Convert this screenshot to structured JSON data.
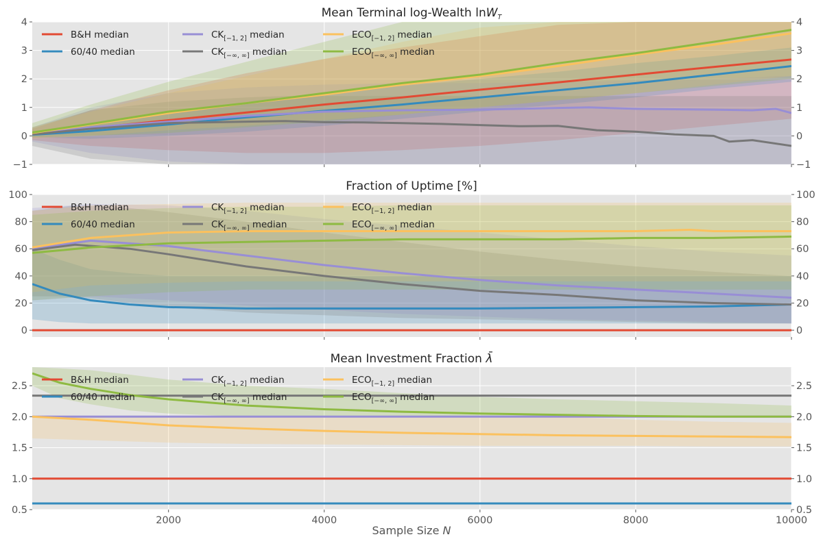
{
  "colors": {
    "bh": "#E24A33",
    "sixty": "#348ABD",
    "ck12": "#988ED5",
    "ckinf": "#777777",
    "eco12": "#FBC15E",
    "ecoinf": "#8EBA42",
    "axes_bg": "#E5E5E5",
    "grid": "#FFFFFF"
  },
  "chart_data": [
    {
      "type": "line",
      "title_text": "Mean Terminal log-Wealth ln",
      "title_var": "W",
      "title_sub": "T",
      "xlim": [
        250,
        10000
      ],
      "ylim": [
        -1,
        4
      ],
      "yticks": [
        -1,
        0,
        1,
        2,
        3,
        4
      ],
      "ytick_labels": [
        "−1",
        "0",
        "1",
        "2",
        "3",
        "4"
      ],
      "xticks": [
        2000,
        4000,
        6000,
        8000,
        10000
      ],
      "grid": true,
      "legend": "upper-left",
      "series": [
        {
          "key": "bh",
          "name": "B&H median",
          "x": [
            250,
            1000,
            2000,
            3000,
            4000,
            5000,
            6000,
            7000,
            8000,
            9000,
            10000
          ],
          "y": [
            0.07,
            0.27,
            0.55,
            0.82,
            1.1,
            1.35,
            1.62,
            1.88,
            2.15,
            2.42,
            2.68
          ],
          "band_low": [
            -0.15,
            -0.35,
            -0.5,
            -0.6,
            -0.6,
            -0.5,
            -0.35,
            -0.15,
            0.1,
            0.35,
            0.6
          ],
          "band_high": [
            0.25,
            0.9,
            1.6,
            2.2,
            2.7,
            3.1,
            3.5,
            3.9,
            4.0,
            4.0,
            4.0
          ]
        },
        {
          "key": "sixty",
          "name": "60/40 median",
          "x": [
            250,
            1000,
            2000,
            3000,
            4000,
            5000,
            6000,
            7000,
            8000,
            9000,
            10000
          ],
          "y": [
            0.04,
            0.17,
            0.4,
            0.65,
            0.88,
            1.1,
            1.35,
            1.6,
            1.85,
            2.15,
            2.45
          ],
          "band_low": [
            -0.05,
            -0.1,
            0.0,
            0.15,
            0.35,
            0.6,
            0.85,
            1.1,
            1.35,
            1.65,
            1.9
          ],
          "band_high": [
            0.12,
            0.45,
            0.8,
            1.15,
            1.45,
            1.75,
            2.0,
            2.25,
            2.55,
            2.8,
            3.1
          ]
        },
        {
          "key": "ck12",
          "name": "CK",
          "name_sub": "[−1, 2]",
          "name_tail": " median",
          "x": [
            250,
            1000,
            2000,
            3000,
            4000,
            5000,
            6000,
            7000,
            7400,
            8000,
            9000,
            9500,
            9800,
            10000
          ],
          "y": [
            0.05,
            0.3,
            0.5,
            0.7,
            0.85,
            0.9,
            0.92,
            0.98,
            1.0,
            0.95,
            0.92,
            0.9,
            0.95,
            0.8
          ],
          "band_low": [
            -0.2,
            -0.6,
            -0.9,
            -1,
            -1,
            -1,
            -1,
            -1,
            -1,
            -1,
            -1,
            -1,
            -1,
            -1
          ],
          "band_high": [
            0.3,
            1.0,
            1.5,
            1.7,
            1.8,
            1.85,
            1.85,
            1.9,
            1.9,
            1.95,
            2.0,
            2.05,
            2.1,
            2.1
          ]
        },
        {
          "key": "ckinf",
          "name": "CK",
          "name_sub": "[−∞, ∞]",
          "name_tail": " median",
          "x": [
            250,
            1000,
            2000,
            3000,
            3500,
            4000,
            4500,
            5000,
            5500,
            6000,
            6500,
            7000,
            7500,
            8000,
            8500,
            9000,
            9200,
            9500,
            10000
          ],
          "y": [
            0.05,
            0.25,
            0.45,
            0.5,
            0.52,
            0.48,
            0.47,
            0.45,
            0.42,
            0.38,
            0.34,
            0.35,
            0.2,
            0.15,
            0.05,
            0.0,
            -0.2,
            -0.15,
            -0.35
          ],
          "band_low": [
            -0.35,
            -0.8,
            -1,
            -1,
            -1,
            -1,
            -1,
            -1,
            -1,
            -1,
            -1,
            -1,
            -1,
            -1,
            -1,
            -1,
            -1,
            -1,
            -1
          ],
          "band_high": [
            0.3,
            0.9,
            1.2,
            1.35,
            1.4,
            1.4,
            1.4,
            1.4,
            1.4,
            1.4,
            1.4,
            1.4,
            1.4,
            1.4,
            1.4,
            1.4,
            1.4,
            1.4,
            1.4
          ]
        },
        {
          "key": "eco12",
          "name": "ECO",
          "name_sub": "[−1, 2]",
          "name_tail": " median",
          "x": [
            250,
            1000,
            2000,
            3000,
            4000,
            5000,
            6000,
            7000,
            8000,
            9000,
            10000
          ],
          "y": [
            0.1,
            0.4,
            0.8,
            1.15,
            1.45,
            1.8,
            2.1,
            2.45,
            2.85,
            3.2,
            3.6
          ],
          "band_low": [
            -0.1,
            0.0,
            0.2,
            0.35,
            0.55,
            0.75,
            1.0,
            1.25,
            1.5,
            1.8,
            2.1
          ],
          "band_high": [
            0.3,
            0.85,
            1.5,
            2.1,
            2.7,
            3.3,
            3.8,
            4.0,
            4.0,
            4.0,
            4.0
          ]
        },
        {
          "key": "ecoinf",
          "name": "ECO",
          "name_sub": "[−∞, ∞]",
          "name_tail": " median",
          "x": [
            250,
            1000,
            2000,
            3000,
            4000,
            5000,
            6000,
            7000,
            8000,
            9000,
            10000
          ],
          "y": [
            0.12,
            0.42,
            0.85,
            1.15,
            1.5,
            1.85,
            2.15,
            2.55,
            2.9,
            3.3,
            3.72
          ],
          "band_low": [
            -0.05,
            0.0,
            0.1,
            0.3,
            0.5,
            0.75,
            1.0,
            1.25,
            1.5,
            1.75,
            2.0
          ],
          "band_high": [
            0.45,
            1.1,
            1.9,
            2.6,
            3.3,
            4.0,
            4.0,
            4.0,
            4.0,
            4.0,
            4.0
          ]
        }
      ]
    },
    {
      "type": "line",
      "title_text": "Fraction of Uptime [%]",
      "xlim": [
        250,
        10000
      ],
      "ylim": [
        -5,
        100
      ],
      "yticks": [
        0,
        20,
        40,
        60,
        80,
        100
      ],
      "ytick_labels": [
        "0",
        "20",
        "40",
        "60",
        "80",
        "100"
      ],
      "xticks": [
        2000,
        4000,
        6000,
        8000,
        10000
      ],
      "grid": true,
      "legend": "upper-left",
      "series": [
        {
          "key": "bh",
          "name": "B&H median",
          "x": [
            250,
            10000
          ],
          "y": [
            0,
            0
          ]
        },
        {
          "key": "sixty",
          "name": "60/40 median",
          "x": [
            250,
            600,
            1000,
            1500,
            2000,
            3000,
            4000,
            5000,
            6000,
            7000,
            8000,
            9000,
            10000
          ],
          "y": [
            34,
            27,
            22,
            19,
            17,
            16,
            16,
            16,
            16,
            16.5,
            17,
            17.5,
            19
          ],
          "band_low": [
            8,
            6,
            5,
            5,
            5,
            5,
            5,
            5,
            5,
            5,
            5,
            5,
            5
          ],
          "band_high": [
            60,
            52,
            45,
            42,
            40,
            40,
            40,
            40,
            40,
            40,
            40,
            40,
            40
          ]
        },
        {
          "key": "ck12",
          "name": "CK",
          "name_sub": "[−1, 2]",
          "name_tail": " median",
          "x": [
            250,
            1000,
            2000,
            3000,
            4000,
            5000,
            6000,
            7000,
            8000,
            9000,
            10000
          ],
          "y": [
            60,
            66,
            62,
            55,
            48,
            42,
            37,
            33,
            30,
            27,
            24
          ],
          "band_low": [
            22,
            25,
            22,
            18,
            15,
            12,
            10,
            8,
            7,
            6,
            5
          ],
          "band_high": [
            90,
            93,
            92,
            88,
            82,
            77,
            72,
            67,
            62,
            58,
            55
          ]
        },
        {
          "key": "ckinf",
          "name": "CK",
          "name_sub": "[−∞, ∞]",
          "name_tail": " median",
          "x": [
            250,
            800,
            1500,
            2000,
            3000,
            4000,
            5000,
            6000,
            7000,
            8000,
            9000,
            10000
          ],
          "y": [
            59,
            63,
            60,
            56,
            47,
            40,
            34,
            29,
            26,
            22,
            20,
            19
          ],
          "band_low": [
            25,
            25,
            20,
            17,
            13,
            11,
            9,
            8,
            7,
            6,
            5,
            5
          ],
          "band_high": [
            88,
            92,
            90,
            87,
            80,
            72,
            65,
            58,
            52,
            47,
            43,
            40
          ]
        },
        {
          "key": "eco12",
          "name": "ECO",
          "name_sub": "[−1, 2]",
          "name_tail": " median",
          "x": [
            250,
            1000,
            2000,
            3000,
            4000,
            5000,
            6000,
            7000,
            8000,
            8700,
            9000,
            10000
          ],
          "y": [
            61,
            68,
            72,
            73,
            73,
            73,
            73,
            73,
            73,
            74,
            73,
            73
          ],
          "band_low": [
            28,
            33,
            35,
            36,
            36,
            36,
            36,
            36,
            36,
            36,
            36,
            36
          ],
          "band_high": [
            88,
            92,
            93,
            94,
            94,
            94,
            94,
            94,
            94,
            94,
            94,
            94
          ]
        },
        {
          "key": "ecoinf",
          "name": "ECO",
          "name_sub": "[−∞, ∞]",
          "name_tail": " median",
          "x": [
            250,
            1000,
            2000,
            3000,
            4000,
            5000,
            6000,
            7000,
            8000,
            9000,
            10000
          ],
          "y": [
            57,
            61,
            64,
            65,
            66,
            67,
            67,
            67,
            68,
            68,
            69
          ],
          "band_low": [
            22,
            25,
            28,
            30,
            30,
            30,
            30,
            30,
            30,
            30,
            30
          ],
          "band_high": [
            85,
            88,
            90,
            91,
            91,
            92,
            92,
            92,
            92,
            92,
            92
          ]
        }
      ]
    },
    {
      "type": "line",
      "title_text": "Mean Investment Fraction ",
      "title_var": "λ̄",
      "xlim": [
        250,
        10000
      ],
      "ylim": [
        0.5,
        2.8
      ],
      "yticks": [
        0.5,
        1.0,
        1.5,
        2.0,
        2.5
      ],
      "ytick_labels": [
        "0.5",
        "1.0",
        "1.5",
        "2.0",
        "2.5"
      ],
      "xticks": [
        2000,
        4000,
        6000,
        8000,
        10000
      ],
      "xtick_labels": [
        "2000",
        "4000",
        "6000",
        "8000",
        "10000"
      ],
      "xlabel_text": "Sample Size ",
      "xlabel_var": "N",
      "grid": true,
      "legend": "upper-left",
      "series": [
        {
          "key": "bh",
          "name": "B&H median",
          "x": [
            250,
            10000
          ],
          "y": [
            1.0,
            1.0
          ]
        },
        {
          "key": "sixty",
          "name": "60/40 median",
          "x": [
            250,
            10000
          ],
          "y": [
            0.6,
            0.6
          ]
        },
        {
          "key": "ck12",
          "name": "CK",
          "name_sub": "[−1, 2]",
          "name_tail": " median",
          "x": [
            250,
            10000
          ],
          "y": [
            2.0,
            2.0
          ]
        },
        {
          "key": "ckinf",
          "name": "CK",
          "name_sub": "[−∞, ∞]",
          "name_tail": " median",
          "x": [
            250,
            10000
          ],
          "y": [
            2.34,
            2.34
          ]
        },
        {
          "key": "eco12",
          "name": "ECO",
          "name_sub": "[−1, 2]",
          "name_tail": " median",
          "x": [
            250,
            1000,
            2000,
            3000,
            4000,
            5000,
            6000,
            7000,
            8000,
            9000,
            10000
          ],
          "y": [
            2.0,
            1.95,
            1.86,
            1.81,
            1.77,
            1.74,
            1.72,
            1.7,
            1.69,
            1.68,
            1.67
          ],
          "band_low": [
            1.65,
            1.62,
            1.58,
            1.56,
            1.55,
            1.54,
            1.53,
            1.53,
            1.53,
            1.52,
            1.52
          ],
          "band_high": [
            2.0,
            2.0,
            2.0,
            2.0,
            2.0,
            2.0,
            2.0,
            2.0,
            1.95,
            1.92,
            1.9
          ]
        },
        {
          "key": "ecoinf",
          "name": "ECO",
          "name_sub": "[−∞, ∞]",
          "name_tail": " median",
          "x": [
            250,
            600,
            1000,
            1500,
            2000,
            3000,
            4000,
            5000,
            6000,
            7000,
            8000,
            9000,
            10000
          ],
          "y": [
            2.7,
            2.55,
            2.45,
            2.35,
            2.28,
            2.18,
            2.12,
            2.08,
            2.05,
            2.03,
            2.01,
            2.0,
            2.0
          ],
          "band_low": [
            2.5,
            2.3,
            2.2,
            2.1,
            2.05,
            2.0,
            2.0,
            2.0,
            2.0,
            2.0,
            2.0,
            2.0,
            2.0
          ],
          "band_high": [
            2.8,
            2.78,
            2.75,
            2.68,
            2.6,
            2.5,
            2.45,
            2.38,
            2.32,
            2.28,
            2.25,
            2.22,
            2.18
          ]
        }
      ]
    }
  ]
}
